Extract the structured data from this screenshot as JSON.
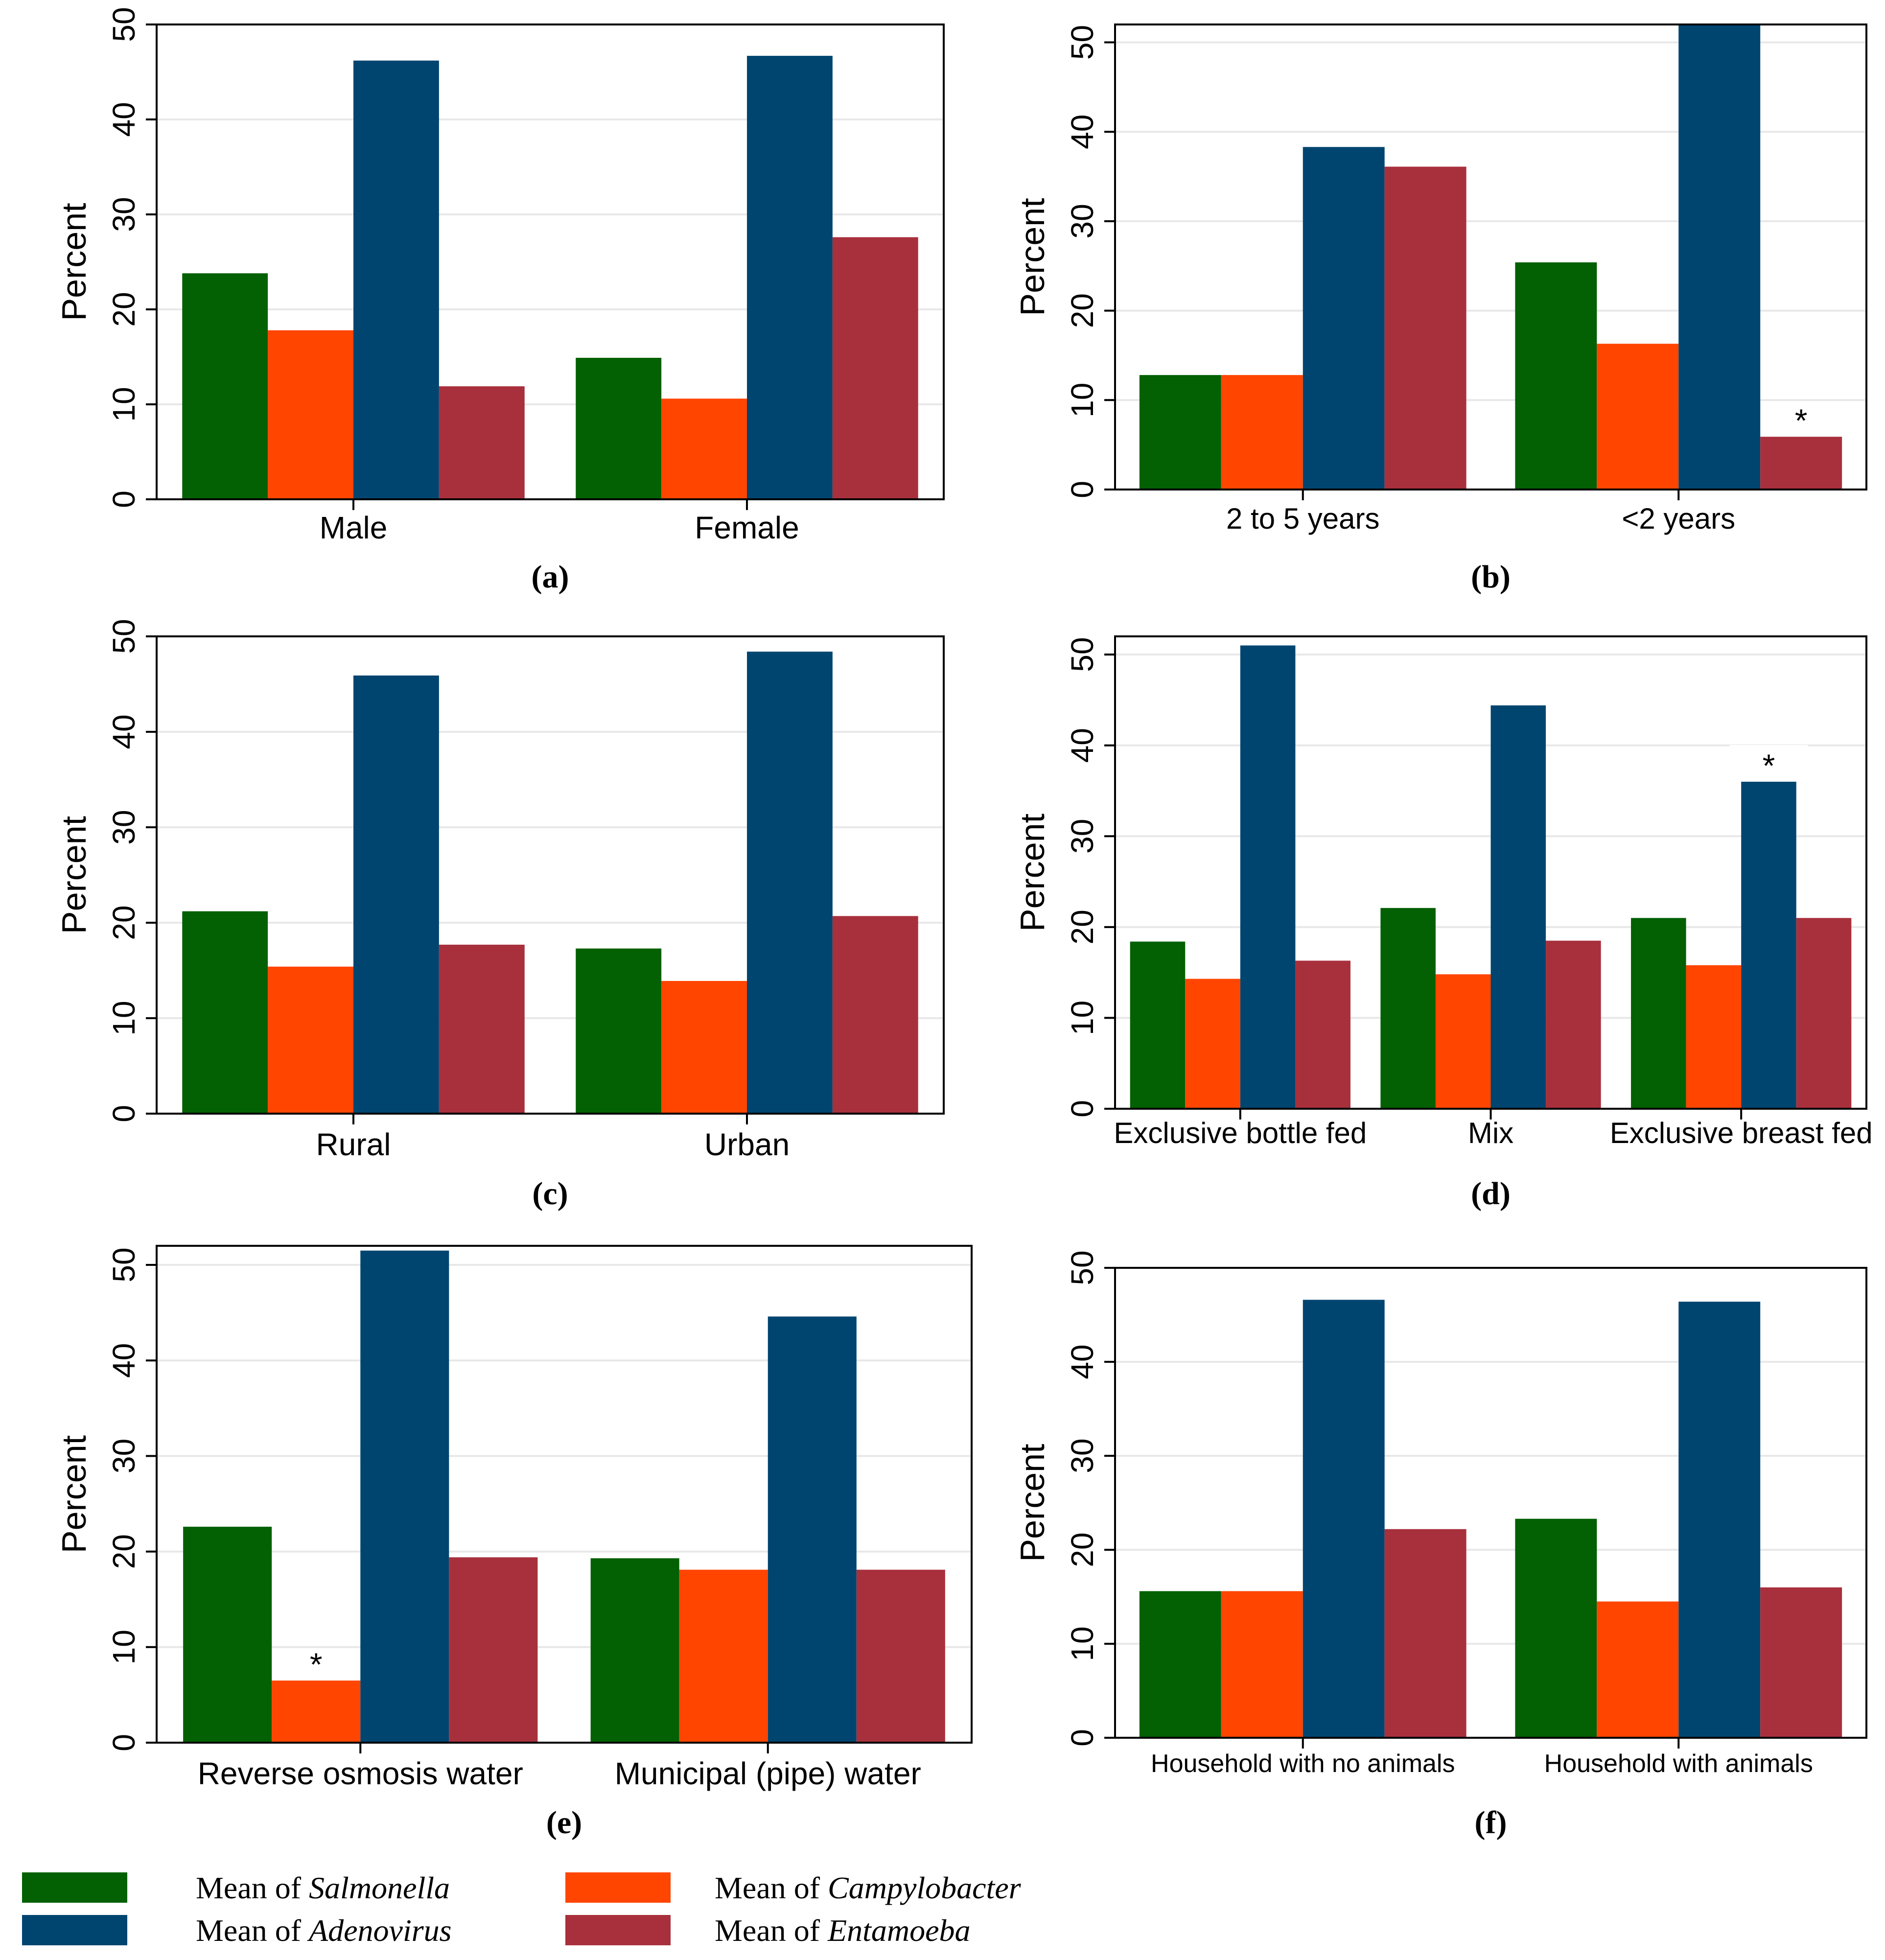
{
  "legend": [
    {
      "key": "salmonella",
      "prefix": "Mean of ",
      "name": "Salmonella",
      "color": "#036003"
    },
    {
      "key": "campylobacter",
      "prefix": "Mean of ",
      "name": "Campylobacter",
      "color": "#FF4500"
    },
    {
      "key": "adenovirus",
      "prefix": "Mean of ",
      "name": "Adenovirus",
      "color": "#004570"
    },
    {
      "key": "entamoeba",
      "prefix": "Mean of ",
      "name": "Entamoeba",
      "color": "#A8303C"
    }
  ],
  "chart_data": [
    {
      "type": "bar",
      "panel": "(a)",
      "ylabel": "Percent",
      "ylim": [
        0,
        50
      ],
      "yticks": [
        0,
        10,
        20,
        30,
        40,
        50
      ],
      "categories": [
        "Male",
        "Female"
      ],
      "series": [
        {
          "name": "Mean of Salmonella",
          "values": [
            23.8,
            14.9
          ]
        },
        {
          "name": "Mean of Campylobacter",
          "values": [
            17.8,
            10.6
          ]
        },
        {
          "name": "Mean of Adenovirus",
          "values": [
            46.2,
            46.7
          ]
        },
        {
          "name": "Mean of Entamoeba",
          "values": [
            11.9,
            27.6
          ]
        }
      ],
      "annotations": []
    },
    {
      "type": "bar",
      "panel": "(b)",
      "ylabel": "Percent",
      "ylim": [
        0,
        52
      ],
      "yticks": [
        0,
        10,
        20,
        30,
        40,
        50
      ],
      "categories": [
        "2 to 5 years",
        "<2 years"
      ],
      "series": [
        {
          "name": "Mean of Salmonella",
          "values": [
            12.8,
            25.4
          ]
        },
        {
          "name": "Mean of Campylobacter",
          "values": [
            12.8,
            16.3
          ]
        },
        {
          "name": "Mean of Adenovirus",
          "values": [
            38.3,
            52.1
          ]
        },
        {
          "name": "Mean of Entamoeba",
          "values": [
            36.1,
            5.9
          ]
        }
      ],
      "annotations": [
        {
          "text": "*",
          "category": 1,
          "series": 3
        }
      ]
    },
    {
      "type": "bar",
      "panel": "(c)",
      "ylabel": "Percent",
      "ylim": [
        0,
        50
      ],
      "yticks": [
        0,
        10,
        20,
        30,
        40,
        50
      ],
      "categories": [
        "Rural",
        "Urban"
      ],
      "series": [
        {
          "name": "Mean of Salmonella",
          "values": [
            21.2,
            17.3
          ]
        },
        {
          "name": "Mean of Campylobacter",
          "values": [
            15.4,
            13.9
          ]
        },
        {
          "name": "Mean of Adenovirus",
          "values": [
            45.9,
            48.4
          ]
        },
        {
          "name": "Mean of Entamoeba",
          "values": [
            17.7,
            20.7
          ]
        }
      ],
      "annotations": []
    },
    {
      "type": "bar",
      "panel": "(d)",
      "ylabel": "Percent",
      "ylim": [
        0,
        52
      ],
      "yticks": [
        0,
        10,
        20,
        30,
        40,
        50
      ],
      "categories": [
        "Exclusive bottle fed",
        "Mix",
        "Exclusive breast fed"
      ],
      "series": [
        {
          "name": "Mean of Salmonella",
          "values": [
            18.4,
            22.1,
            21.0
          ]
        },
        {
          "name": "Mean of Campylobacter",
          "values": [
            14.3,
            14.8,
            15.8
          ]
        },
        {
          "name": "Mean of Adenovirus",
          "values": [
            51.0,
            44.4,
            36.0
          ]
        },
        {
          "name": "Mean of Entamoeba",
          "values": [
            16.3,
            18.5,
            21.0
          ]
        }
      ],
      "annotations": [
        {
          "text": "*",
          "category": 2,
          "series": 2
        }
      ]
    },
    {
      "type": "bar",
      "panel": "(e)",
      "ylabel": "Percent",
      "ylim": [
        0,
        52
      ],
      "yticks": [
        0,
        10,
        20,
        30,
        40,
        50
      ],
      "categories": [
        "Reverse osmosis water",
        "Municipal (pipe) water"
      ],
      "series": [
        {
          "name": "Mean of Salmonella",
          "values": [
            22.6,
            19.3
          ]
        },
        {
          "name": "Mean of Campylobacter",
          "values": [
            6.5,
            18.1
          ]
        },
        {
          "name": "Mean of Adenovirus",
          "values": [
            51.5,
            44.6
          ]
        },
        {
          "name": "Mean of Entamoeba",
          "values": [
            19.4,
            18.1
          ]
        }
      ],
      "annotations": [
        {
          "text": "*",
          "category": 0,
          "series": 1
        }
      ]
    },
    {
      "type": "bar",
      "panel": "(f)",
      "ylabel": "Percent",
      "ylim": [
        0,
        50
      ],
      "yticks": [
        0,
        10,
        20,
        30,
        40,
        50
      ],
      "categories": [
        "Household with no animals",
        "Household with animals"
      ],
      "series": [
        {
          "name": "Mean of Salmonella",
          "values": [
            15.6,
            23.3
          ]
        },
        {
          "name": "Mean of Campylobacter",
          "values": [
            15.6,
            14.5
          ]
        },
        {
          "name": "Mean of Adenovirus",
          "values": [
            46.6,
            46.4
          ]
        },
        {
          "name": "Mean of Entamoeba",
          "values": [
            22.2,
            16.0
          ]
        }
      ],
      "annotations": []
    }
  ]
}
